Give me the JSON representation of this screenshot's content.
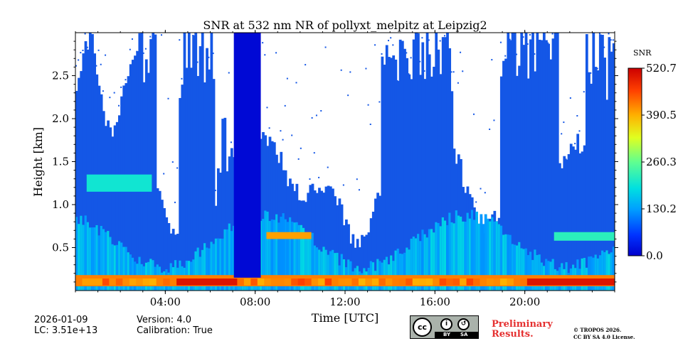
{
  "chart_data": {
    "type": "heatmap",
    "title": "SNR at 532 nm NR of pollyxt_melpitz at Leipzig2",
    "xlabel": "Time [UTC]",
    "ylabel": "Height [km]",
    "xlim": [
      0,
      24
    ],
    "ylim": [
      0,
      3.0
    ],
    "x_ticks": [
      "04:00",
      "08:00",
      "12:00",
      "16:00",
      "20:00"
    ],
    "x_tick_values": [
      4,
      8,
      12,
      16,
      20
    ],
    "y_ticks": [
      "0.5",
      "1.0",
      "1.5",
      "2.0",
      "2.5"
    ],
    "y_tick_values": [
      0.5,
      1.0,
      1.5,
      2.0,
      2.5
    ],
    "colorbar": {
      "label": "SNR",
      "range": [
        0.0,
        520.7
      ],
      "ticks": [
        "0.0",
        "130.2",
        "260.3",
        "390.5",
        "520.7"
      ],
      "tick_values": [
        0.0,
        130.2,
        260.3,
        390.5,
        520.7
      ]
    },
    "features": [
      {
        "name": "surface layer",
        "t_start": 0,
        "t_end": 24,
        "h_bottom": 0.05,
        "h_top": 0.18,
        "snr": 420
      },
      {
        "name": "morning aerosol layer",
        "t_start": 0.5,
        "t_end": 3.4,
        "h_bottom": 1.15,
        "h_top": 1.35,
        "snr": 200
      },
      {
        "name": "layer 08:30-10:30",
        "t_start": 8.5,
        "t_end": 10.5,
        "h_bottom": 0.6,
        "h_top": 0.68,
        "snr": 400
      },
      {
        "name": "evening layer",
        "t_start": 21.3,
        "t_end": 24,
        "h_bottom": 0.58,
        "h_top": 0.68,
        "snr": 220
      },
      {
        "name": "signal dropout",
        "t_start": 7.05,
        "t_end": 8.25,
        "h_bottom": 0.15,
        "h_top": 3.0,
        "snr": 10
      }
    ]
  },
  "footer": {
    "date": "2026-01-09",
    "lc": "LC: 3.51e+13",
    "version": "Version: 4.0",
    "calibration": "Calibration: True",
    "license_badge": {
      "cc": "cc",
      "by": "BY",
      "sa": "SA"
    },
    "preliminary_line1": "Preliminary",
    "preliminary_line2": "Results.",
    "copyright_line1": "© TROPOS 2026.",
    "copyright_line2": "CC BY SA 4.0 License."
  },
  "colors": {
    "preliminary": "#e53030",
    "background": "#ffffff"
  }
}
